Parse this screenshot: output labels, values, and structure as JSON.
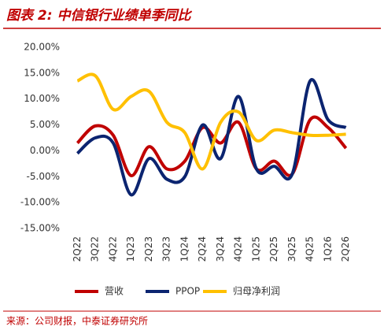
{
  "chart_data": {
    "type": "line",
    "title": "图表 2:  中信银行业绩单季同比",
    "source": "来源：公司财报，中泰证券研究所",
    "categories": [
      "2Q22",
      "3Q22",
      "4Q22",
      "1Q23",
      "2Q23",
      "3Q23",
      "1Q24",
      "2Q24",
      "3Q24",
      "4Q24",
      "1Q25",
      "2Q25",
      "3Q25",
      "4Q25",
      "1Q26",
      "2Q26"
    ],
    "series": [
      {
        "name": "营收",
        "color": "#c00000",
        "values": [
          1.5,
          4.8,
          3.0,
          -4.8,
          0.8,
          -3.5,
          -2.0,
          4.5,
          1.5,
          5.5,
          -3.5,
          -2.0,
          -4.5,
          6.0,
          4.5,
          0.5
        ]
      },
      {
        "name": "PPOP",
        "color": "#0b2470",
        "values": [
          -0.5,
          2.5,
          1.5,
          -8.5,
          -1.5,
          -5.5,
          -5.0,
          5.0,
          -1.5,
          10.5,
          -3.5,
          -3.0,
          -4.5,
          13.5,
          6.0,
          4.5
        ]
      },
      {
        "name": "归母净利润",
        "color": "#ffc000",
        "values": [
          13.5,
          14.5,
          8.0,
          10.5,
          11.5,
          5.5,
          3.5,
          -3.5,
          5.5,
          7.5,
          2.0,
          4.0,
          3.5,
          3.0,
          3.0,
          3.2
        ]
      }
    ],
    "ylim": [
      -15,
      20
    ],
    "yticks": [
      {
        "value": -15,
        "label": "-15.00%"
      },
      {
        "value": -10,
        "label": "-10.00%"
      },
      {
        "value": -5,
        "label": "-5.00%"
      },
      {
        "value": 0,
        "label": "0.00%"
      },
      {
        "value": 5,
        "label": "5.00%"
      },
      {
        "value": 10,
        "label": "10.00%"
      },
      {
        "value": 15,
        "label": "15.00%"
      },
      {
        "value": 20,
        "label": "20.00%"
      }
    ],
    "legend": "bottom"
  }
}
